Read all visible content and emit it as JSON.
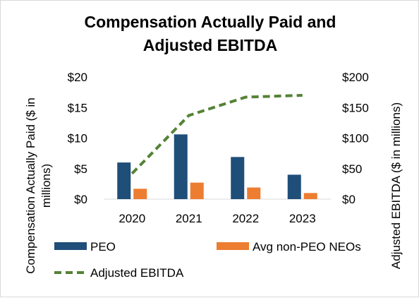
{
  "chart_data": {
    "type": "bar",
    "title_line1": "Compensation Actually Paid and",
    "title_line2": "Adjusted EBITDA",
    "categories": [
      "2020",
      "2021",
      "2022",
      "2023"
    ],
    "series": [
      {
        "name": "PEO",
        "type": "bar",
        "axis": "left",
        "color": "#1f4e79",
        "values": [
          6.0,
          10.6,
          6.9,
          4.0
        ]
      },
      {
        "name": "Avg non-PEO NEOs",
        "type": "bar",
        "axis": "left",
        "color": "#ed7d31",
        "values": [
          1.7,
          2.7,
          1.9,
          1.0
        ]
      },
      {
        "name": "Adjusted EBITDA",
        "type": "line",
        "style": "dashed",
        "axis": "right",
        "color": "#548235",
        "values": [
          42,
          137,
          167,
          170
        ]
      }
    ],
    "y_left": {
      "label_line1": "Compensation Actually Paid ($ in",
      "label_line2": "millions)",
      "range": [
        0,
        20
      ],
      "ticks": [
        "$0",
        "$5",
        "$10",
        "$15",
        "$20"
      ]
    },
    "y_right": {
      "label": "Adjusted EBITDA ($ in millions)",
      "range": [
        0,
        200
      ],
      "ticks": [
        "$0",
        "$50",
        "$100",
        "$150",
        "$200"
      ]
    },
    "grid": false,
    "legend": "bottom"
  }
}
